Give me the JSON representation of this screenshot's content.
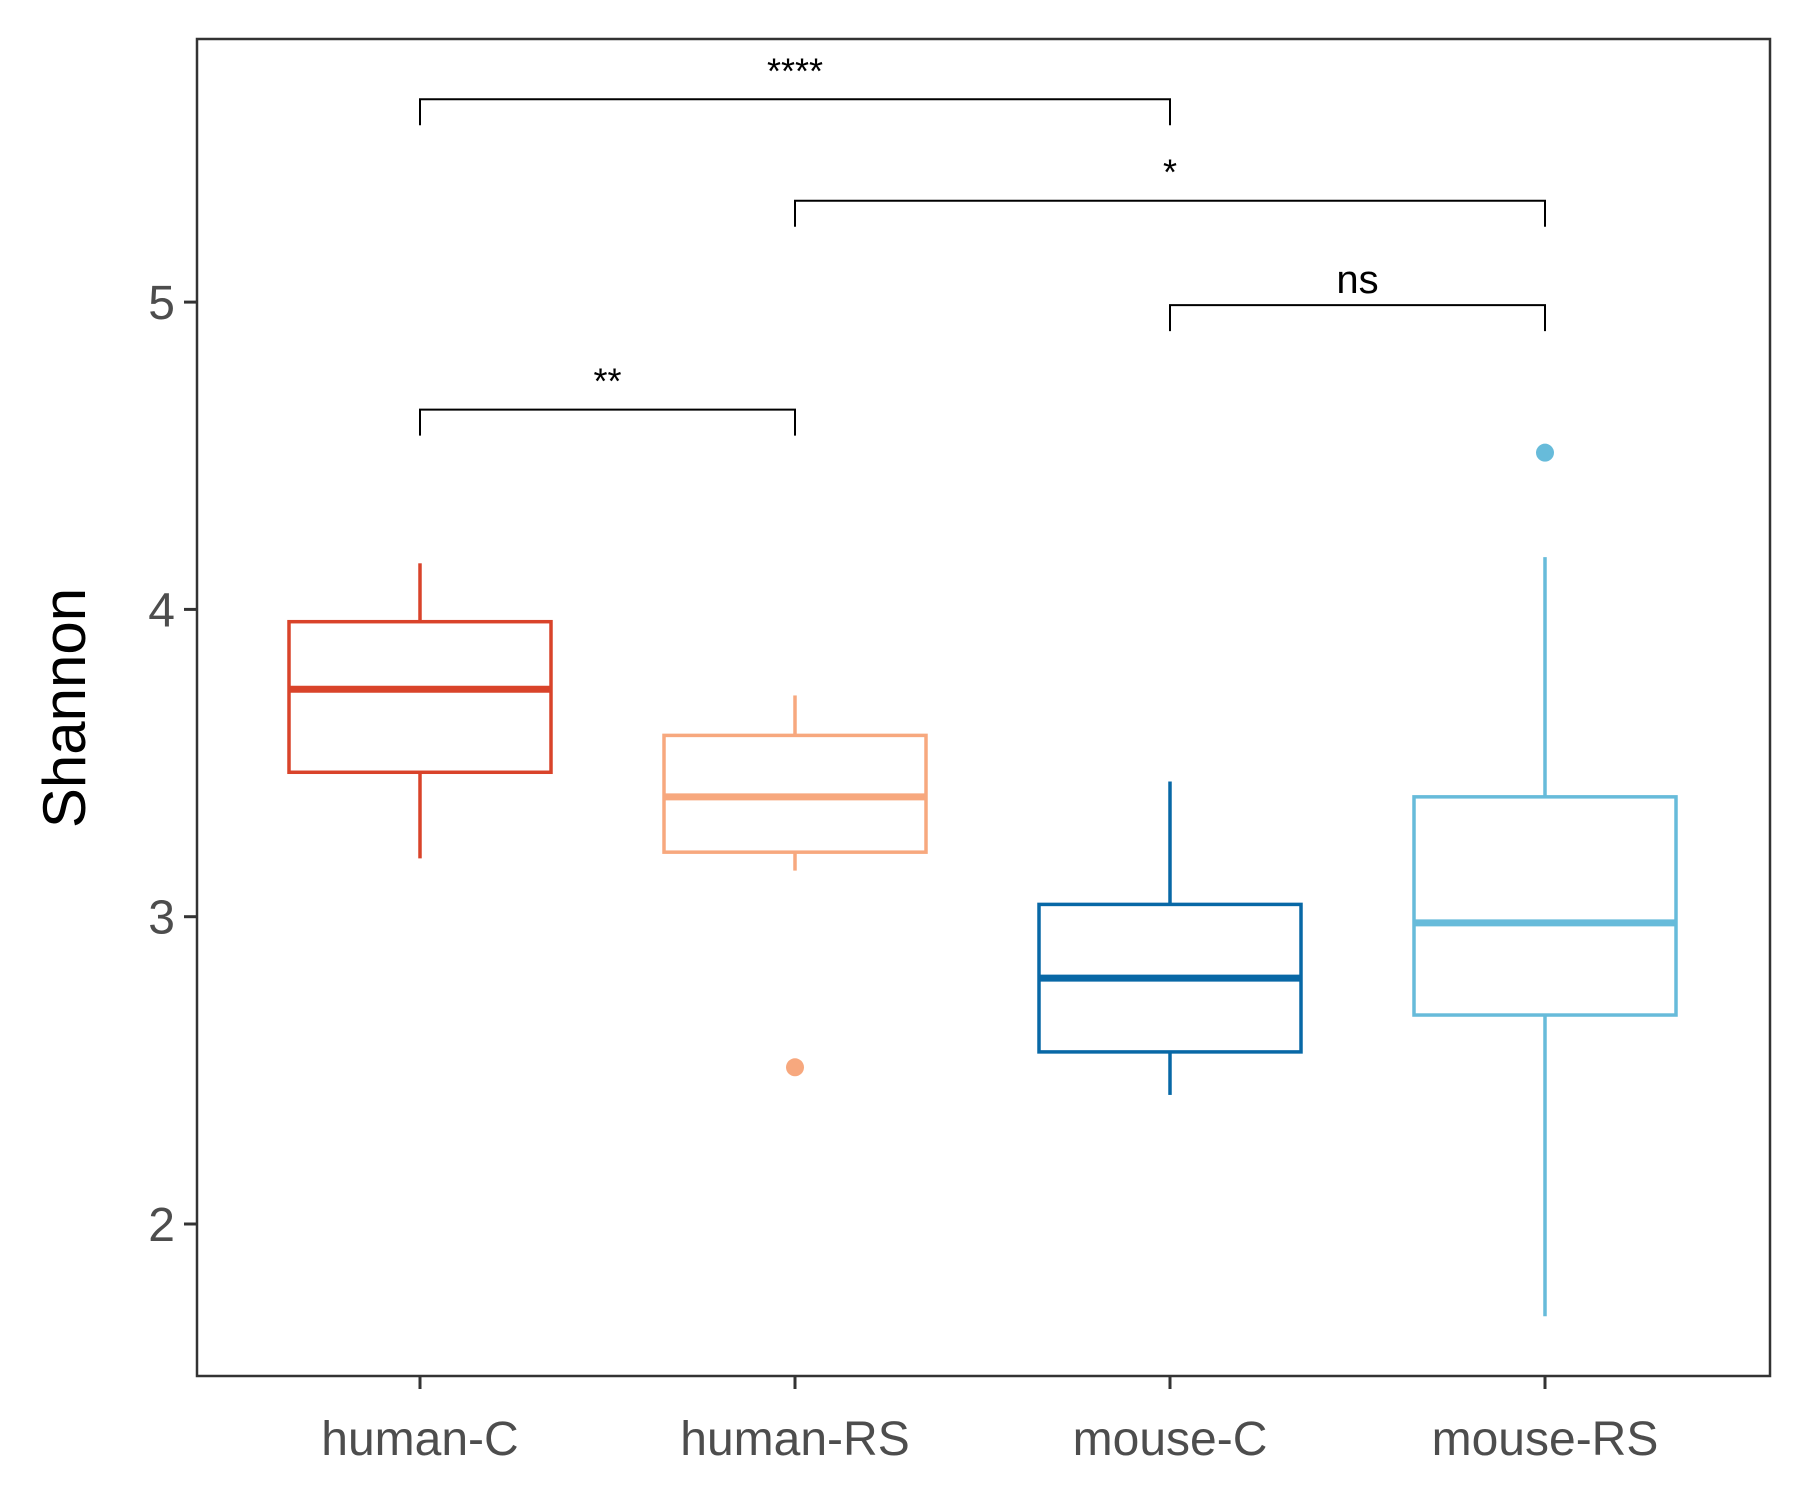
{
  "chart_data": {
    "type": "box",
    "ylabel": "Shannon",
    "xlabel": "",
    "ylim": [
      1.5,
      5.85
    ],
    "yticks": [
      2,
      3,
      4,
      5
    ],
    "grid": false,
    "categories": [
      "human-C",
      "human-RS",
      "mouse-C",
      "mouse-RS"
    ],
    "boxes": [
      {
        "category": "human-C",
        "color": "#D9432A",
        "whisker_low": 3.19,
        "q1": 3.47,
        "median": 3.74,
        "q3": 3.96,
        "whisker_high": 4.15,
        "outliers": []
      },
      {
        "category": "human-RS",
        "color": "#F7A87E",
        "whisker_low": 3.15,
        "q1": 3.21,
        "median": 3.39,
        "q3": 3.59,
        "whisker_high": 3.72,
        "outliers": [
          2.51
        ]
      },
      {
        "category": "mouse-C",
        "color": "#0868A6",
        "whisker_low": 2.42,
        "q1": 2.56,
        "median": 2.8,
        "q3": 3.04,
        "whisker_high": 3.44,
        "outliers": []
      },
      {
        "category": "mouse-RS",
        "color": "#67BBDA",
        "whisker_low": 1.7,
        "q1": 2.68,
        "median": 2.98,
        "q3": 3.39,
        "whisker_high": 4.17,
        "outliers": [
          4.51
        ]
      }
    ],
    "comparisons": [
      {
        "from": "human-C",
        "to": "human-RS",
        "label": "**",
        "y": 4.65
      },
      {
        "from": "mouse-C",
        "to": "mouse-RS",
        "label": "ns",
        "y": 4.99
      },
      {
        "from": "human-RS",
        "to": "mouse-RS",
        "label": "*",
        "y": 5.33
      },
      {
        "from": "human-C",
        "to": "mouse-C",
        "label": "****",
        "y": 5.66
      }
    ]
  }
}
